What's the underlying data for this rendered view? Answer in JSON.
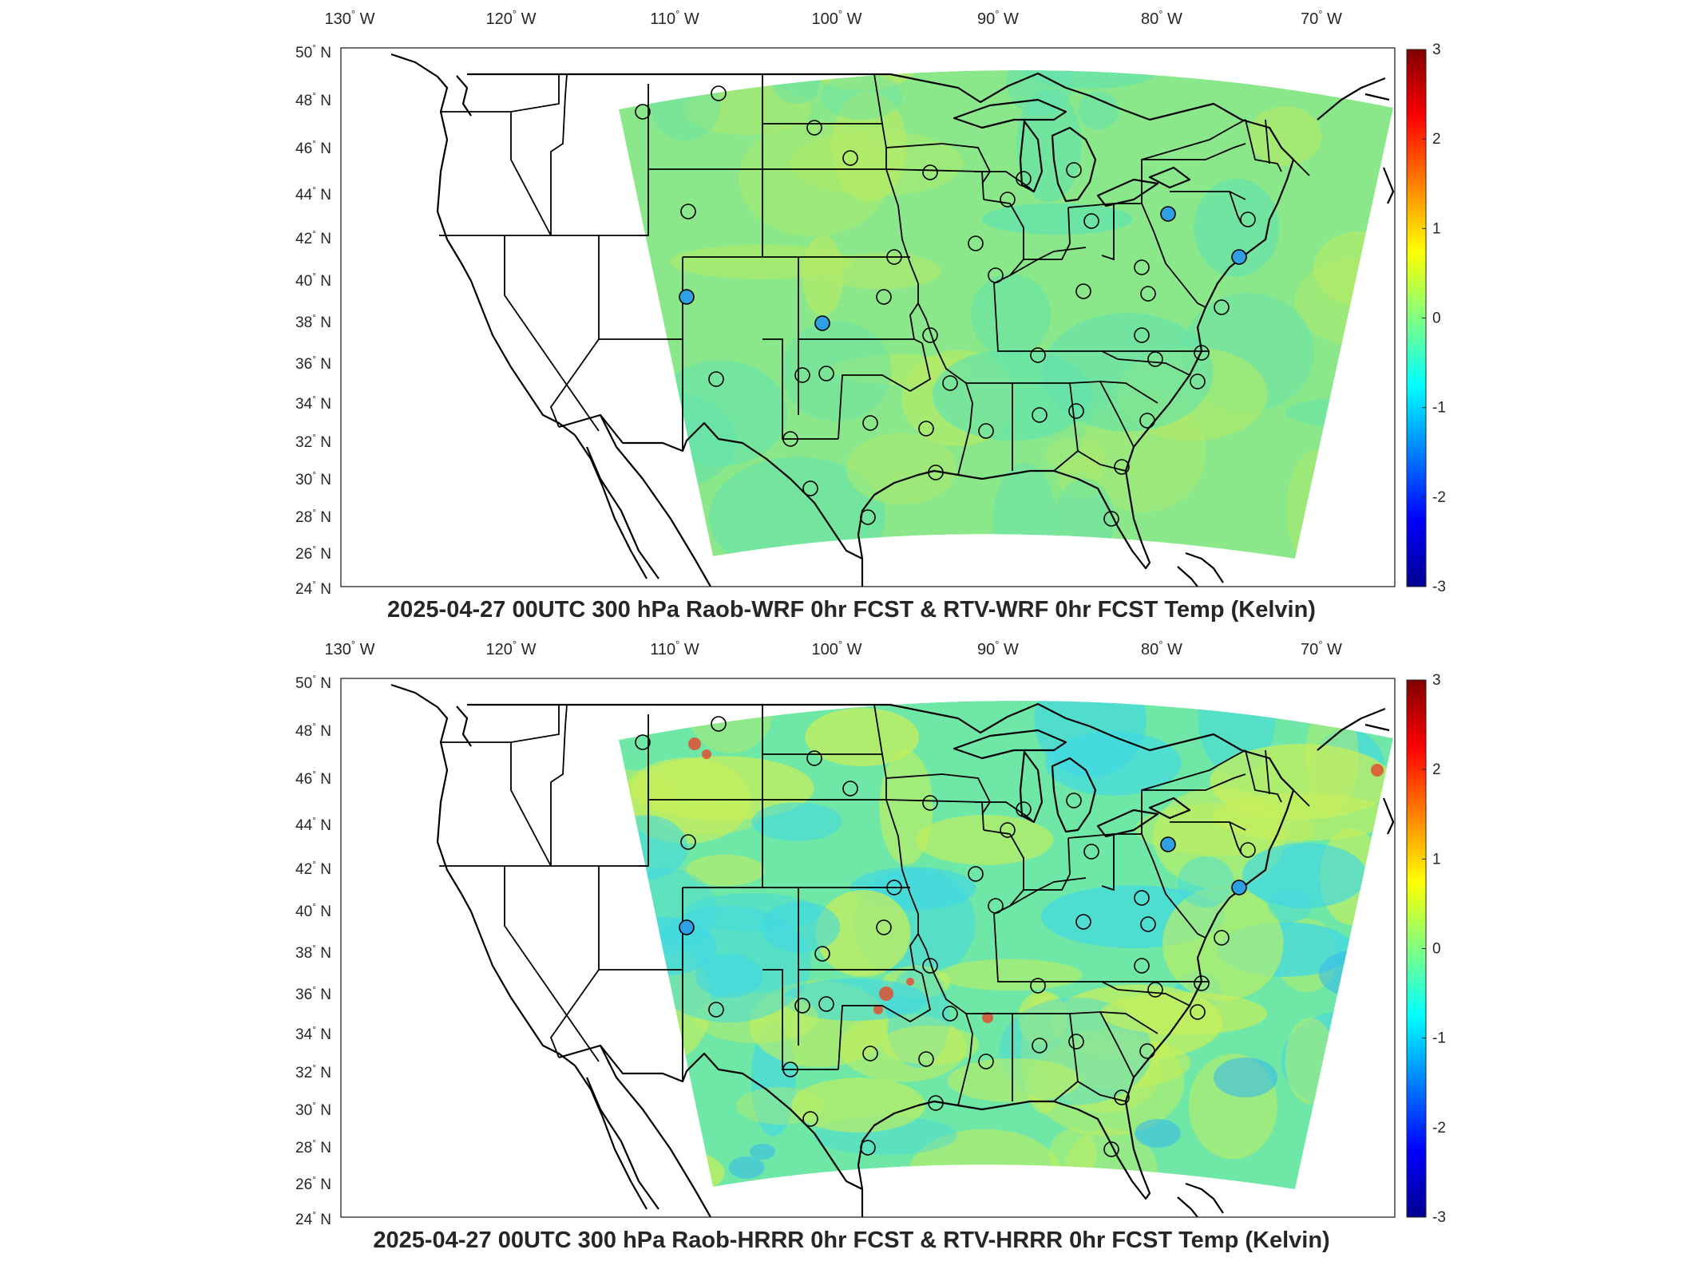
{
  "panels": [
    {
      "title": "2025-04-27 00UTC 300 hPa Raob-WRF 0hr FCST & RTV-WRF 0hr FCST Temp (Kelvin)",
      "variant": "wrf"
    },
    {
      "title": "2025-04-27 00UTC 300 hPa Raob-HRRR 0hr FCST & RTV-HRRR 0hr FCST Temp (Kelvin)",
      "variant": "hrrr"
    }
  ],
  "lon_labels": [
    "130",
    "120",
    "110",
    "100",
    "90",
    "80",
    "70"
  ],
  "lon_suffix": "W",
  "lat_labels": [
    "50",
    "48",
    "46",
    "44",
    "42",
    "40",
    "38",
    "36",
    "34",
    "32",
    "30",
    "28",
    "26",
    "24"
  ],
  "lat_suffix": "N",
  "degree_symbol": "°",
  "colorbar": {
    "ticks": [
      "3",
      "2",
      "1",
      "0",
      "-1",
      "-2",
      "-3"
    ],
    "range": [
      -3,
      3
    ],
    "colors": [
      "#00008f",
      "#0000ff",
      "#0080ff",
      "#00ffff",
      "#80ff80",
      "#ffff00",
      "#ff8000",
      "#ff0000",
      "#800000"
    ]
  },
  "field_colors": {
    "wrf": {
      "base": "#8ae88a",
      "patch_a": "#b4ea66",
      "patch_b": "#62e2ae"
    },
    "hrrr": {
      "base": "#6fe7a6",
      "patch_a": "#c7ef5a",
      "patch_b": "#3fd8e6"
    }
  }
}
